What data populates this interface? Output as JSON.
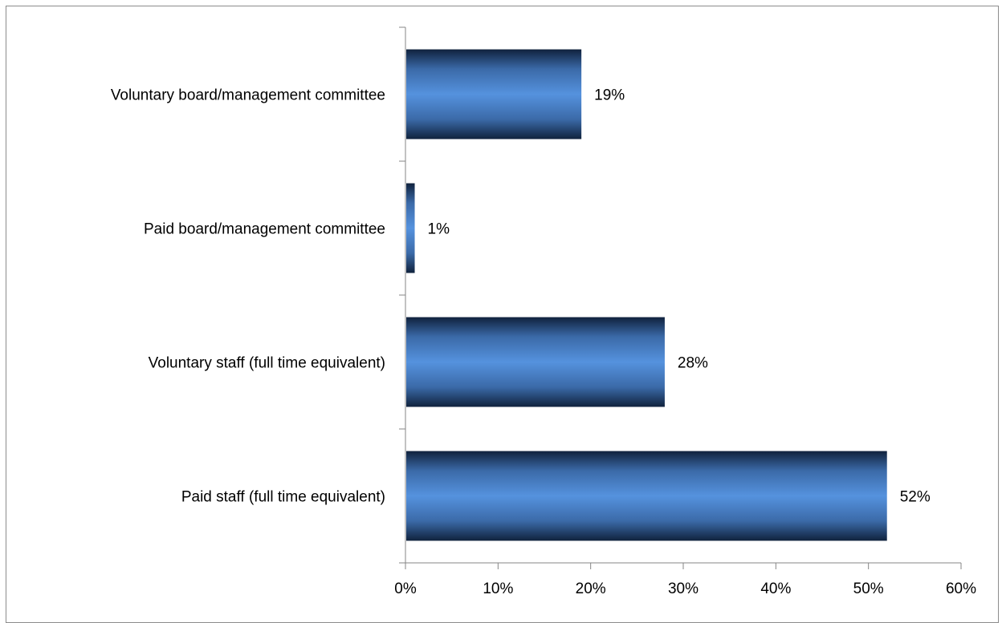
{
  "chart_data": {
    "type": "bar",
    "orientation": "horizontal",
    "categories": [
      "Voluntary board/management committee",
      "Paid board/management committee",
      "Voluntary staff (full time equivalent)",
      "Paid staff (full time equivalent)"
    ],
    "values": [
      19,
      1,
      28,
      52
    ],
    "value_labels": [
      "19%",
      "1%",
      "28%",
      "52%"
    ],
    "xlim": [
      0,
      60
    ],
    "x_ticks": [
      0,
      10,
      20,
      30,
      40,
      50,
      60
    ],
    "x_tick_labels": [
      "0%",
      "10%",
      "20%",
      "30%",
      "40%",
      "50%",
      "60%"
    ],
    "title": "",
    "xlabel": "",
    "ylabel": "",
    "grid": false,
    "legend": "none",
    "bar_colors": {
      "edge": "#10223d",
      "mid": "#3b6aa8",
      "center": "#5592de"
    }
  }
}
